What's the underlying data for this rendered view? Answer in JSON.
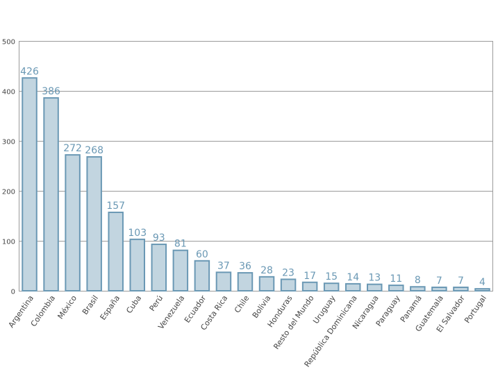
{
  "chart_data": {
    "type": "bar",
    "title": "",
    "xlabel": "",
    "ylabel": "",
    "ylim": [
      0,
      500
    ],
    "yticks": [
      0,
      100,
      200,
      300,
      400,
      500
    ],
    "grid": true,
    "colors": {
      "bar_fill": "#c2d5e0",
      "bar_stroke": "#6a98b4",
      "label": "#6a98b4",
      "grid": "#9a9a9a"
    },
    "categories": [
      "Argentina",
      "Colombia",
      "México",
      "Brasil",
      "España",
      "Cuba",
      "Perú",
      "Venezuela",
      "Ecuador",
      "Costa Rica",
      "Chile",
      "Bolivia",
      "Honduras",
      "Resto del Mundo",
      "Uruguay",
      "República Dominicana",
      "Nicaragua",
      "Paraguay",
      "Panamá",
      "Guatemala",
      "El Salvador",
      "Portugal"
    ],
    "values": [
      426,
      386,
      272,
      268,
      157,
      103,
      93,
      81,
      60,
      37,
      36,
      28,
      23,
      17,
      15,
      14,
      13,
      11,
      8,
      7,
      7,
      4
    ]
  }
}
